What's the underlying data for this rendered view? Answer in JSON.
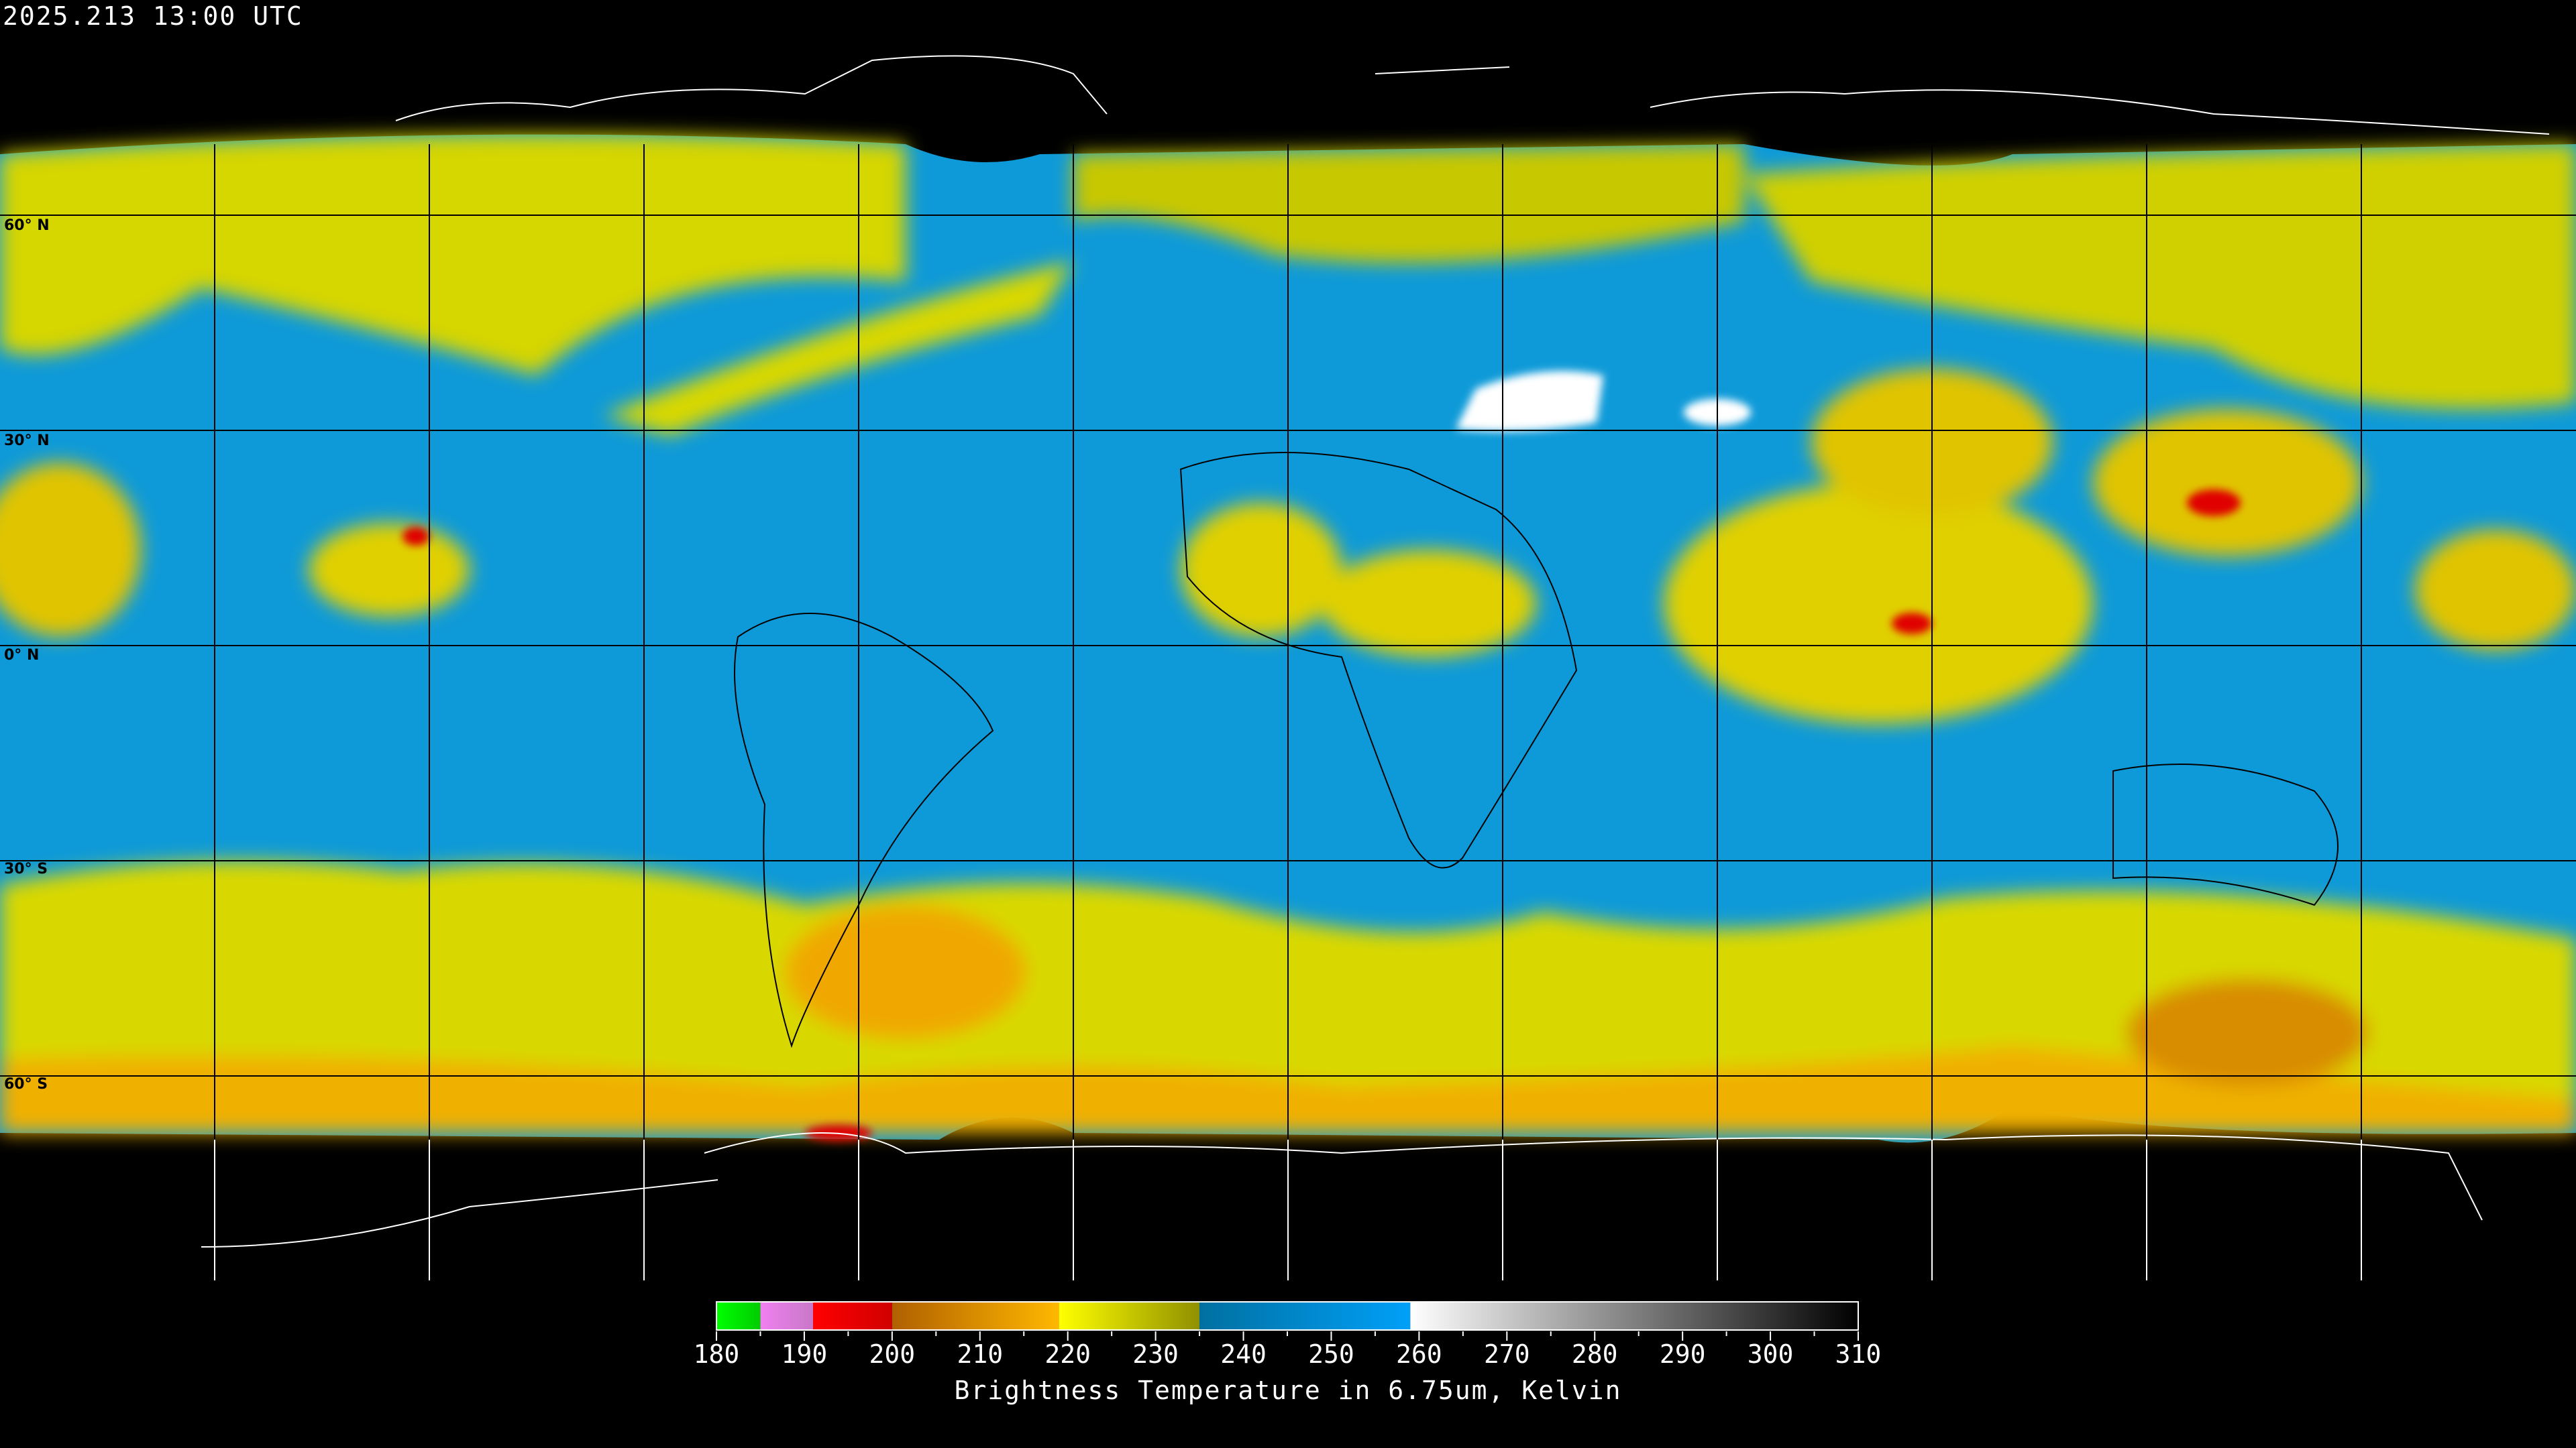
{
  "header": {
    "timestamp": "2025.213 13:00 UTC"
  },
  "map": {
    "projection": "equirectangular",
    "latitude_labels": [
      "60° N",
      "30° N",
      "0° N",
      "30° S",
      "60° S"
    ],
    "latitudes": [
      60,
      30,
      0,
      -30,
      -60
    ],
    "longitude_grid_spacing_deg": 30,
    "colors": {
      "gridline_over_data": "#000000",
      "gridline_over_background": "#ffffff",
      "background": "#000000"
    }
  },
  "colorbar": {
    "title": "Brightness Temperature in 6.75um, Kelvin",
    "range": [
      180,
      310
    ],
    "tick_labels": [
      "180",
      "190",
      "200",
      "210",
      "220",
      "230",
      "240",
      "250",
      "260",
      "270",
      "280",
      "290",
      "300",
      "310"
    ],
    "segments": [
      {
        "from": 180,
        "to": 185,
        "start": "#00ff00",
        "end": "#00cc00"
      },
      {
        "from": 185,
        "to": 191,
        "start": "#f080f0",
        "end": "#c878c8"
      },
      {
        "from": 191,
        "to": 200,
        "start": "#ff0000",
        "end": "#d00000"
      },
      {
        "from": 200,
        "to": 219,
        "start": "#b06000",
        "end": "#ffb800"
      },
      {
        "from": 219,
        "to": 235,
        "start": "#ffff00",
        "end": "#909000"
      },
      {
        "from": 235,
        "to": 259,
        "start": "#0070a0",
        "end": "#00a0f8"
      },
      {
        "from": 259,
        "to": 310,
        "start": "#ffffff",
        "end": "#000000"
      }
    ]
  }
}
